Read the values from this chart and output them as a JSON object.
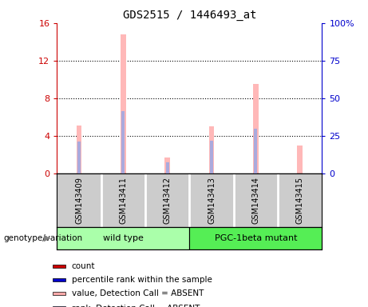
{
  "title": "GDS2515 / 1446493_at",
  "samples": [
    "GSM143409",
    "GSM143411",
    "GSM143412",
    "GSM143413",
    "GSM143414",
    "GSM143415"
  ],
  "pink_bar_values": [
    5.1,
    14.8,
    1.7,
    5.0,
    9.5,
    3.0
  ],
  "blue_bar_values": [
    3.4,
    6.6,
    1.2,
    3.5,
    4.8,
    0.0
  ],
  "left_ylim": [
    0,
    16
  ],
  "left_yticks": [
    0,
    4,
    8,
    12,
    16
  ],
  "right_ylim": [
    0,
    100
  ],
  "right_yticks": [
    0,
    25,
    50,
    75,
    100
  ],
  "right_yticklabels": [
    "0",
    "25",
    "50",
    "75",
    "100%"
  ],
  "left_tick_color": "#cc0000",
  "right_tick_color": "#0000cc",
  "pink_bar_width": 0.12,
  "blue_bar_width": 0.07,
  "group_labels": [
    "wild type",
    "PGC-1beta mutant"
  ],
  "group_ranges": [
    [
      0,
      3
    ],
    [
      3,
      6
    ]
  ],
  "group_colors": [
    "#99ff88",
    "#55ee55"
  ],
  "genotype_label": "genotype/variation",
  "legend_items": [
    {
      "label": "count",
      "color": "#cc0000"
    },
    {
      "label": "percentile rank within the sample",
      "color": "#0000cc"
    },
    {
      "label": "value, Detection Call = ABSENT",
      "color": "#ffaaaa"
    },
    {
      "label": "rank, Detection Call = ABSENT",
      "color": "#aaaaff"
    }
  ],
  "sample_box_color": "#cccccc",
  "plot_bg_color": "#ffffff"
}
